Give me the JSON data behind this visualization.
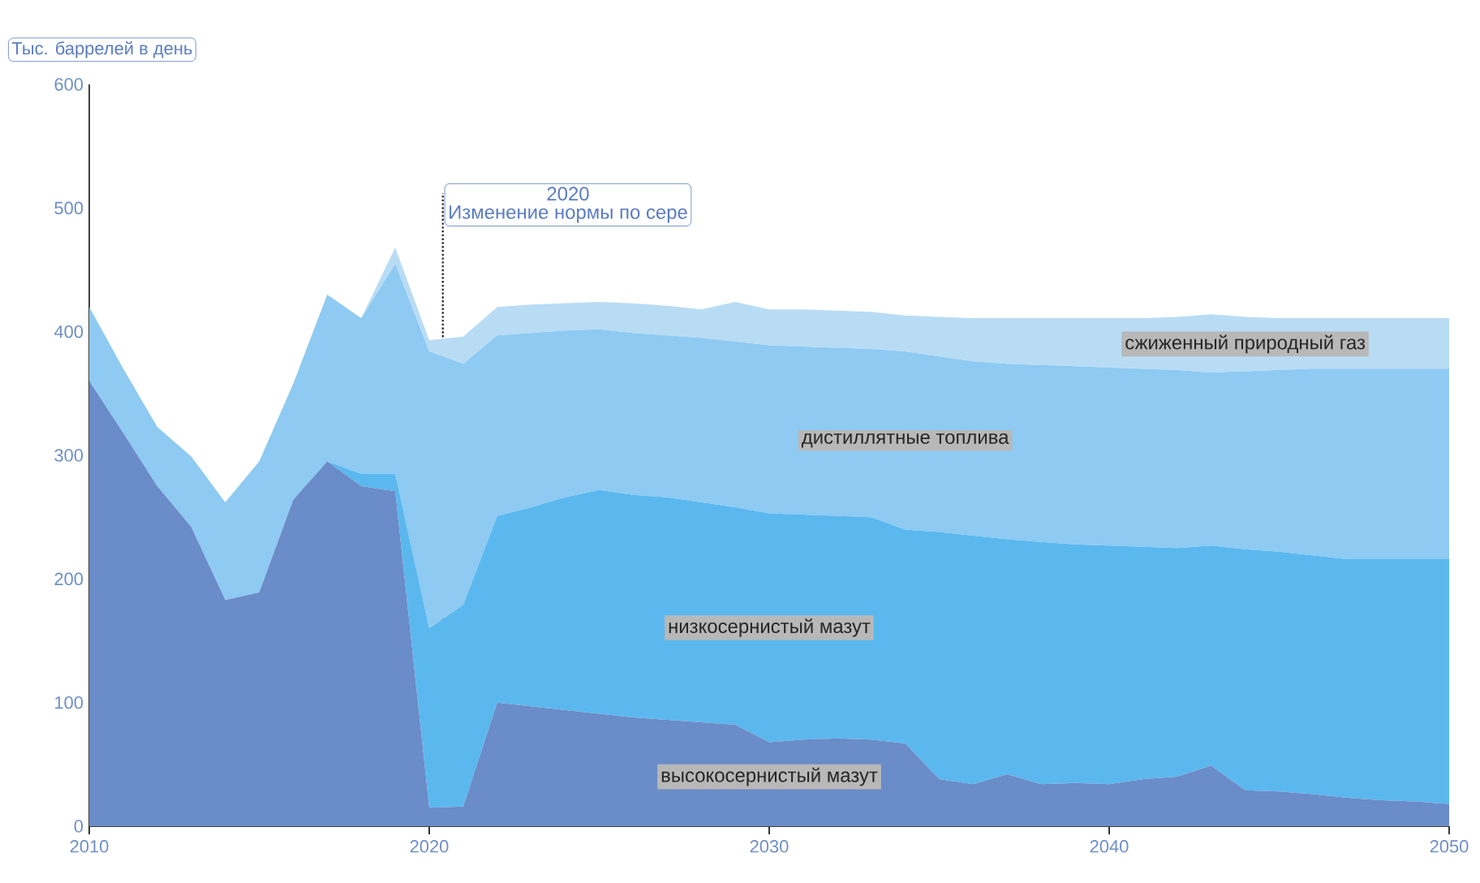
{
  "chart_data": {
    "type": "area",
    "stacked": true,
    "ylabel": "Тыс. баррелей в день",
    "x": [
      2010,
      2011,
      2012,
      2013,
      2014,
      2015,
      2016,
      2017,
      2018,
      2019,
      2020,
      2021,
      2022,
      2023,
      2024,
      2025,
      2026,
      2027,
      2028,
      2029,
      2030,
      2031,
      2032,
      2033,
      2034,
      2035,
      2036,
      2037,
      2038,
      2039,
      2040,
      2041,
      2042,
      2043,
      2044,
      2045,
      2046,
      2047,
      2048,
      2049,
      2050
    ],
    "series": [
      {
        "name": "высокосернистый мазут",
        "color": "#6a8cc8",
        "values": [
          360,
          318,
          275,
          242,
          183,
          189,
          264,
          295,
          275,
          271,
          15,
          16,
          100,
          97,
          94,
          91,
          88,
          86,
          84,
          82,
          68,
          70,
          71,
          70,
          67,
          38,
          34,
          42,
          34,
          35,
          34,
          38,
          40,
          49,
          29,
          28,
          26,
          23,
          21,
          20,
          18
        ]
      },
      {
        "name": "низкосернистый мазут",
        "color": "#5bb8ee",
        "values": [
          0,
          0,
          0,
          0,
          0,
          0,
          0,
          0,
          10,
          14,
          145,
          163,
          151,
          161,
          172,
          181,
          180,
          180,
          178,
          176,
          185,
          182,
          180,
          180,
          173,
          200,
          201,
          190,
          196,
          193,
          193,
          188,
          185,
          178,
          195,
          194,
          193,
          193,
          195,
          196,
          198
        ]
      },
      {
        "name": "дистиллятные топлива",
        "color": "#8ecaf2",
        "values": [
          60,
          52,
          48,
          57,
          79,
          106,
          94,
          135,
          126,
          170,
          224,
          195,
          146,
          141,
          135,
          130,
          131,
          131,
          133,
          134,
          136,
          136,
          136,
          136,
          144,
          142,
          141,
          142,
          143,
          144,
          144,
          144,
          144,
          140,
          144,
          147,
          151,
          154,
          154,
          154,
          154
        ]
      },
      {
        "name": "сжиженный природный газ",
        "color": "#b9dcf5",
        "values": [
          0,
          0,
          0,
          0,
          0,
          0,
          0,
          0,
          0,
          13,
          9,
          22,
          23,
          23,
          22,
          22,
          24,
          24,
          23,
          32,
          29,
          30,
          30,
          30,
          29,
          32,
          35,
          37,
          38,
          39,
          40,
          41,
          43,
          47,
          44,
          42,
          41,
          41,
          41,
          41,
          41
        ]
      }
    ],
    "xlim": [
      2010,
      2050
    ],
    "xticks": [
      2010,
      2020,
      2030,
      2040,
      2050
    ],
    "ylim": [
      0,
      600
    ],
    "yticks": [
      0,
      100,
      200,
      300,
      400,
      500,
      600
    ],
    "ref_lines": [
      {
        "axis": "x",
        "value": 2020.4,
        "label": "Изменение нормы по сере",
        "color": "#333333",
        "line_style": "dotted"
      }
    ],
    "annotations": [
      "2020"
    ],
    "grid": false
  }
}
